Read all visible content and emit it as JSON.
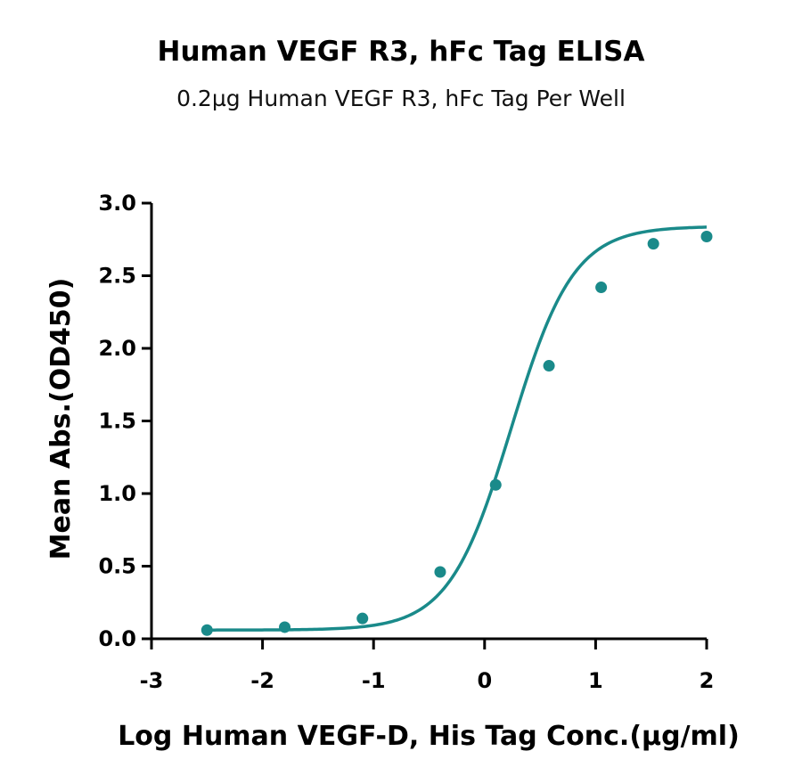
{
  "chart_data": {
    "type": "scatter",
    "title": "Human VEGF R3, hFc Tag ELISA",
    "subtitle": "0.2µg Human VEGF R3, hFc Tag Per Well",
    "xlabel": "Log Human VEGF-D, His Tag Conc.(µg/ml)",
    "ylabel": "Mean Abs.(OD450)",
    "xlim": [
      -3,
      2
    ],
    "ylim": [
      0,
      3
    ],
    "xticks": [
      -3,
      -2,
      -1,
      0,
      1,
      2
    ],
    "yticks": [
      0.0,
      0.5,
      1.0,
      1.5,
      2.0,
      2.5,
      3.0
    ],
    "xtick_labels": [
      "-3",
      "-2",
      "-1",
      "0",
      "1",
      "2"
    ],
    "ytick_labels": [
      "0.0",
      "0.5",
      "1.0",
      "1.5",
      "2.0",
      "2.5",
      "3.0"
    ],
    "grid": false,
    "series": [
      {
        "color": "#1a8a8a",
        "x": [
          -2.5,
          -1.8,
          -1.1,
          -0.4,
          0.1,
          0.58,
          1.05,
          1.52,
          2.0
        ],
        "y": [
          0.06,
          0.08,
          0.14,
          0.46,
          1.06,
          1.88,
          2.42,
          2.72,
          2.77
        ],
        "fit": "4PL sigmoid"
      }
    ]
  }
}
